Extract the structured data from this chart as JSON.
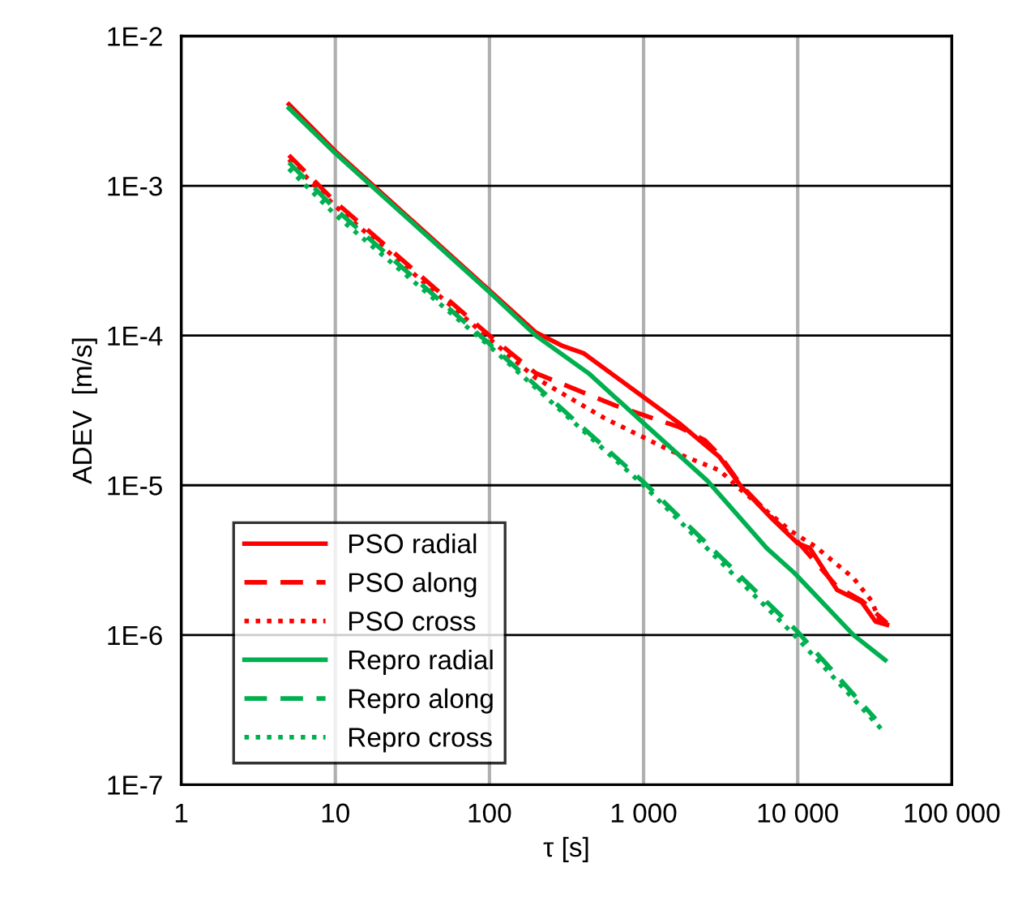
{
  "chart_data": {
    "type": "line",
    "xlabel": "τ [s]",
    "ylabel": "ADEV  [m/s]",
    "log": "xy",
    "grid": true,
    "legend": "bottom left",
    "marker": "none",
    "xlim": [
      1,
      100000
    ],
    "xticks": [
      1,
      10,
      100,
      {
        "value": 1000,
        "label": "1 000"
      },
      {
        "value": 10000,
        "label": "10 000"
      },
      {
        "value": 100000,
        "label": "100 000"
      }
    ],
    "ylim": [
      1e-07,
      0.01
    ],
    "yticks": [
      {
        "value": 1e-07,
        "label": "1E-7"
      },
      {
        "value": 1e-06,
        "label": "1E-6"
      },
      {
        "value": 1e-05,
        "label": "1E-5"
      },
      {
        "value": 0.0001,
        "label": "1E-4"
      },
      {
        "value": 0.001,
        "label": "1E-3"
      },
      {
        "value": 0.01,
        "label": "1E-2"
      }
    ],
    "series": [
      {
        "name": "PSO radial",
        "color": "#ff0000",
        "line_style": "solid",
        "x": [
          5,
          10,
          100,
          200,
          300,
          410,
          900,
          1700,
          3100,
          4300,
          6900,
          10000,
          12000,
          18000,
          26000,
          32000,
          38000
        ],
        "values": [
          0.0035,
          0.0017,
          0.0002,
          0.000105,
          8.5e-05,
          7.6e-05,
          4.2e-05,
          2.6e-05,
          1.55e-05,
          9.8e-06,
          5.9e-06,
          4.1e-06,
          3.8e-06,
          2e-06,
          1.66e-06,
          1.23e-06,
          1.17e-06
        ]
      },
      {
        "name": "PSO along",
        "color": "#ff0000",
        "line_style": "dashed",
        "x": [
          5,
          10,
          100,
          200,
          660,
          1700,
          2500,
          3100,
          4300,
          6900,
          10000,
          18000,
          26000,
          38000
        ],
        "values": [
          0.0016,
          0.00078,
          0.0001,
          5.6e-05,
          3.4e-05,
          2.45e-05,
          2e-05,
          1.6e-05,
          1e-05,
          6e-06,
          4.2e-06,
          2.1e-06,
          1.7e-06,
          1.2e-06
        ]
      },
      {
        "name": "PSO cross",
        "color": "#ff0000",
        "line_style": "dotted",
        "x": [
          5,
          10,
          100,
          200,
          560,
          1500,
          3100,
          4300,
          8900,
          13000,
          23000,
          30000,
          35000
        ],
        "values": [
          0.0015,
          0.00073,
          9.5e-05,
          5.2e-05,
          2.8e-05,
          1.7e-05,
          1.26e-05,
          9.3e-06,
          5e-06,
          3.9e-06,
          2.4e-06,
          1.7e-06,
          1.17e-06
        ]
      },
      {
        "name": "Repro radial",
        "color": "#00b050",
        "line_style": "solid",
        "x": [
          5,
          10,
          100,
          200,
          440,
          1000,
          2600,
          6300,
          9500,
          23000,
          37000
        ],
        "values": [
          0.0033,
          0.00165,
          0.000195,
          0.0001,
          5.6e-05,
          2.6e-05,
          1.07e-05,
          3.8e-06,
          2.6e-06,
          1e-06,
          6.8e-07
        ]
      },
      {
        "name": "Repro along",
        "color": "#00b050",
        "line_style": "dashed",
        "x": [
          5,
          10,
          100,
          1000,
          10000,
          32000
        ],
        "values": [
          0.00143,
          0.0007,
          8.8e-05,
          1.05e-05,
          1.05e-06,
          2.75e-07
        ]
      },
      {
        "name": "Repro cross",
        "color": "#00b050",
        "line_style": "dotted",
        "x": [
          5,
          10,
          100,
          1000,
          9500,
          35000
        ],
        "values": [
          0.0013,
          0.00064,
          8.5e-05,
          1e-05,
          1e-06,
          2.35e-07
        ]
      }
    ]
  }
}
